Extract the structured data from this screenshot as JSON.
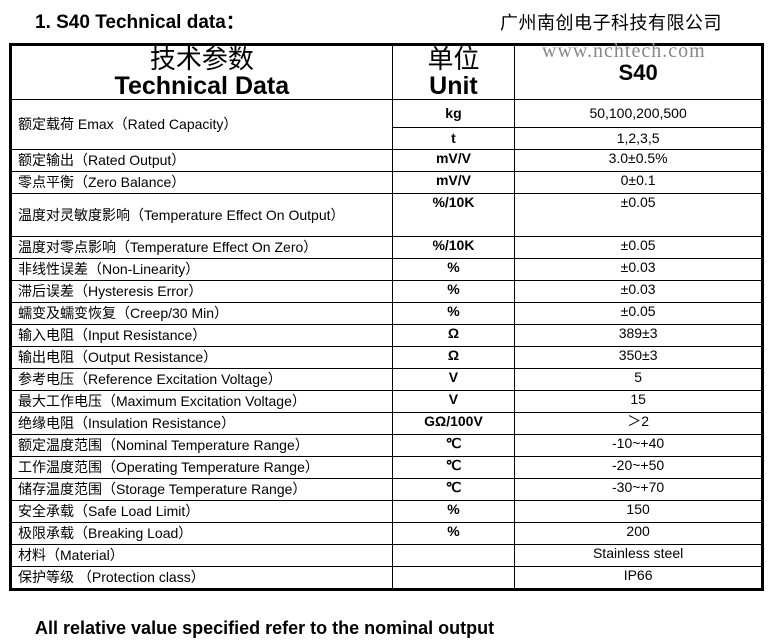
{
  "title": "1. S40 Technical data：",
  "company": "广州南创电子科技有限公司",
  "website": "www.nchtech.com",
  "header": {
    "param_zh": "技术参数",
    "param_en": "Technical Data",
    "unit_zh": "单位",
    "unit_en": "Unit",
    "model": "S40"
  },
  "capacity": {
    "param": "额定载荷 Emax（Rated Capacity）",
    "rows": [
      {
        "unit": "kg",
        "value": "50,100,200,500"
      },
      {
        "unit": "t",
        "value": "1,2,3,5"
      }
    ]
  },
  "rows": [
    {
      "param": "额定输出（Rated Output）",
      "unit": "mV/V",
      "value": "3.0±0.5%"
    },
    {
      "param": "零点平衡（Zero Balance）",
      "unit": "mV/V",
      "value": "0±0.1"
    },
    {
      "param": "温度对灵敏度影响（Temperature Effect On Output）",
      "unit": "%/10K",
      "value": "±0.05"
    },
    {
      "param": "温度对零点影响（Temperature Effect On Zero）",
      "unit": "%/10K",
      "value": "±0.05"
    },
    {
      "param": "非线性误差（Non-Linearity）",
      "unit": "%",
      "value": "±0.03"
    },
    {
      "param": "滞后误差（Hysteresis Error）",
      "unit": "%",
      "value": "±0.03"
    },
    {
      "param": "蠕变及蠕变恢复（Creep/30 Min）",
      "unit": "%",
      "value": "±0.05"
    },
    {
      "param": "输入电阻（Input Resistance）",
      "unit": "Ω",
      "value": "389±3"
    },
    {
      "param": "输出电阻（Output Resistance）",
      "unit": "Ω",
      "value": "350±3"
    },
    {
      "param": "参考电压（Reference Excitation Voltage）",
      "unit": "V",
      "value": "5"
    },
    {
      "param": "最大工作电压（Maximum Excitation Voltage）",
      "unit": "V",
      "value": "15"
    },
    {
      "param": "绝缘电阻（Insulation Resistance）",
      "unit": "GΩ/100V",
      "value": "＞2"
    },
    {
      "param": "额定温度范围（Nominal Temperature Range）",
      "unit": "℃",
      "value": "-10~+40"
    },
    {
      "param": "工作温度范围（Operating Temperature Range）",
      "unit": "℃",
      "value": "-20~+50"
    },
    {
      "param": "储存温度范围（Storage Temperature Range）",
      "unit": "℃",
      "value": "-30~+70"
    },
    {
      "param": "安全承载（Safe Load Limit）",
      "unit": "%",
      "value": "150"
    },
    {
      "param": "极限承载（Breaking Load）",
      "unit": "%",
      "value": "200"
    },
    {
      "param": "材料（Material）",
      "unit": "",
      "value": "Stainless steel"
    },
    {
      "param": "保护等级 （Protection class）",
      "unit": "",
      "value": "IP66"
    }
  ],
  "footnote": "All relative value specified refer to the nominal output"
}
